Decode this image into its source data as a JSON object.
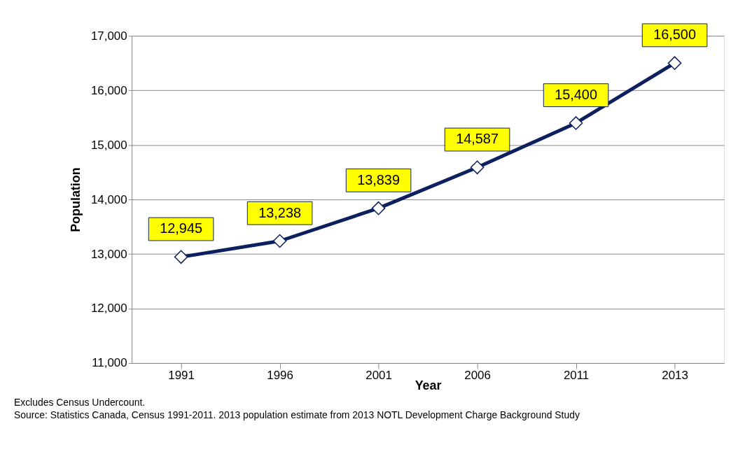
{
  "chart_data": {
    "type": "line",
    "xlabel": "Year",
    "ylabel": "Population",
    "categories": [
      "1991",
      "1996",
      "2001",
      "2006",
      "2011",
      "2013"
    ],
    "series": [
      {
        "color": "#0c1f5e",
        "values": [
          12945,
          13238,
          13839,
          14587,
          15400,
          16500
        ]
      }
    ],
    "value_labels": [
      "12,945",
      "13,238",
      "13,839",
      "14,587",
      "15,400",
      "16,500"
    ],
    "ylim": [
      11000,
      17000
    ],
    "yticks": [
      {
        "value": 11000,
        "label": "11,000"
      },
      {
        "value": 12000,
        "label": "12,000"
      },
      {
        "value": 13000,
        "label": "13,000"
      },
      {
        "value": 14000,
        "label": "14,000"
      },
      {
        "value": 15000,
        "label": "15,000"
      },
      {
        "value": 16000,
        "label": "16,000"
      },
      {
        "value": 17000,
        "label": "17,000"
      }
    ],
    "grid": "y",
    "marker": "diamond",
    "line_style": "solid",
    "annotations": [
      "Excludes Census Undercount.",
      "Source: Statistics Canada, Census 1991-2011.  2013 population estimate from 2013 NOTL  Development Charge Background Study"
    ]
  }
}
